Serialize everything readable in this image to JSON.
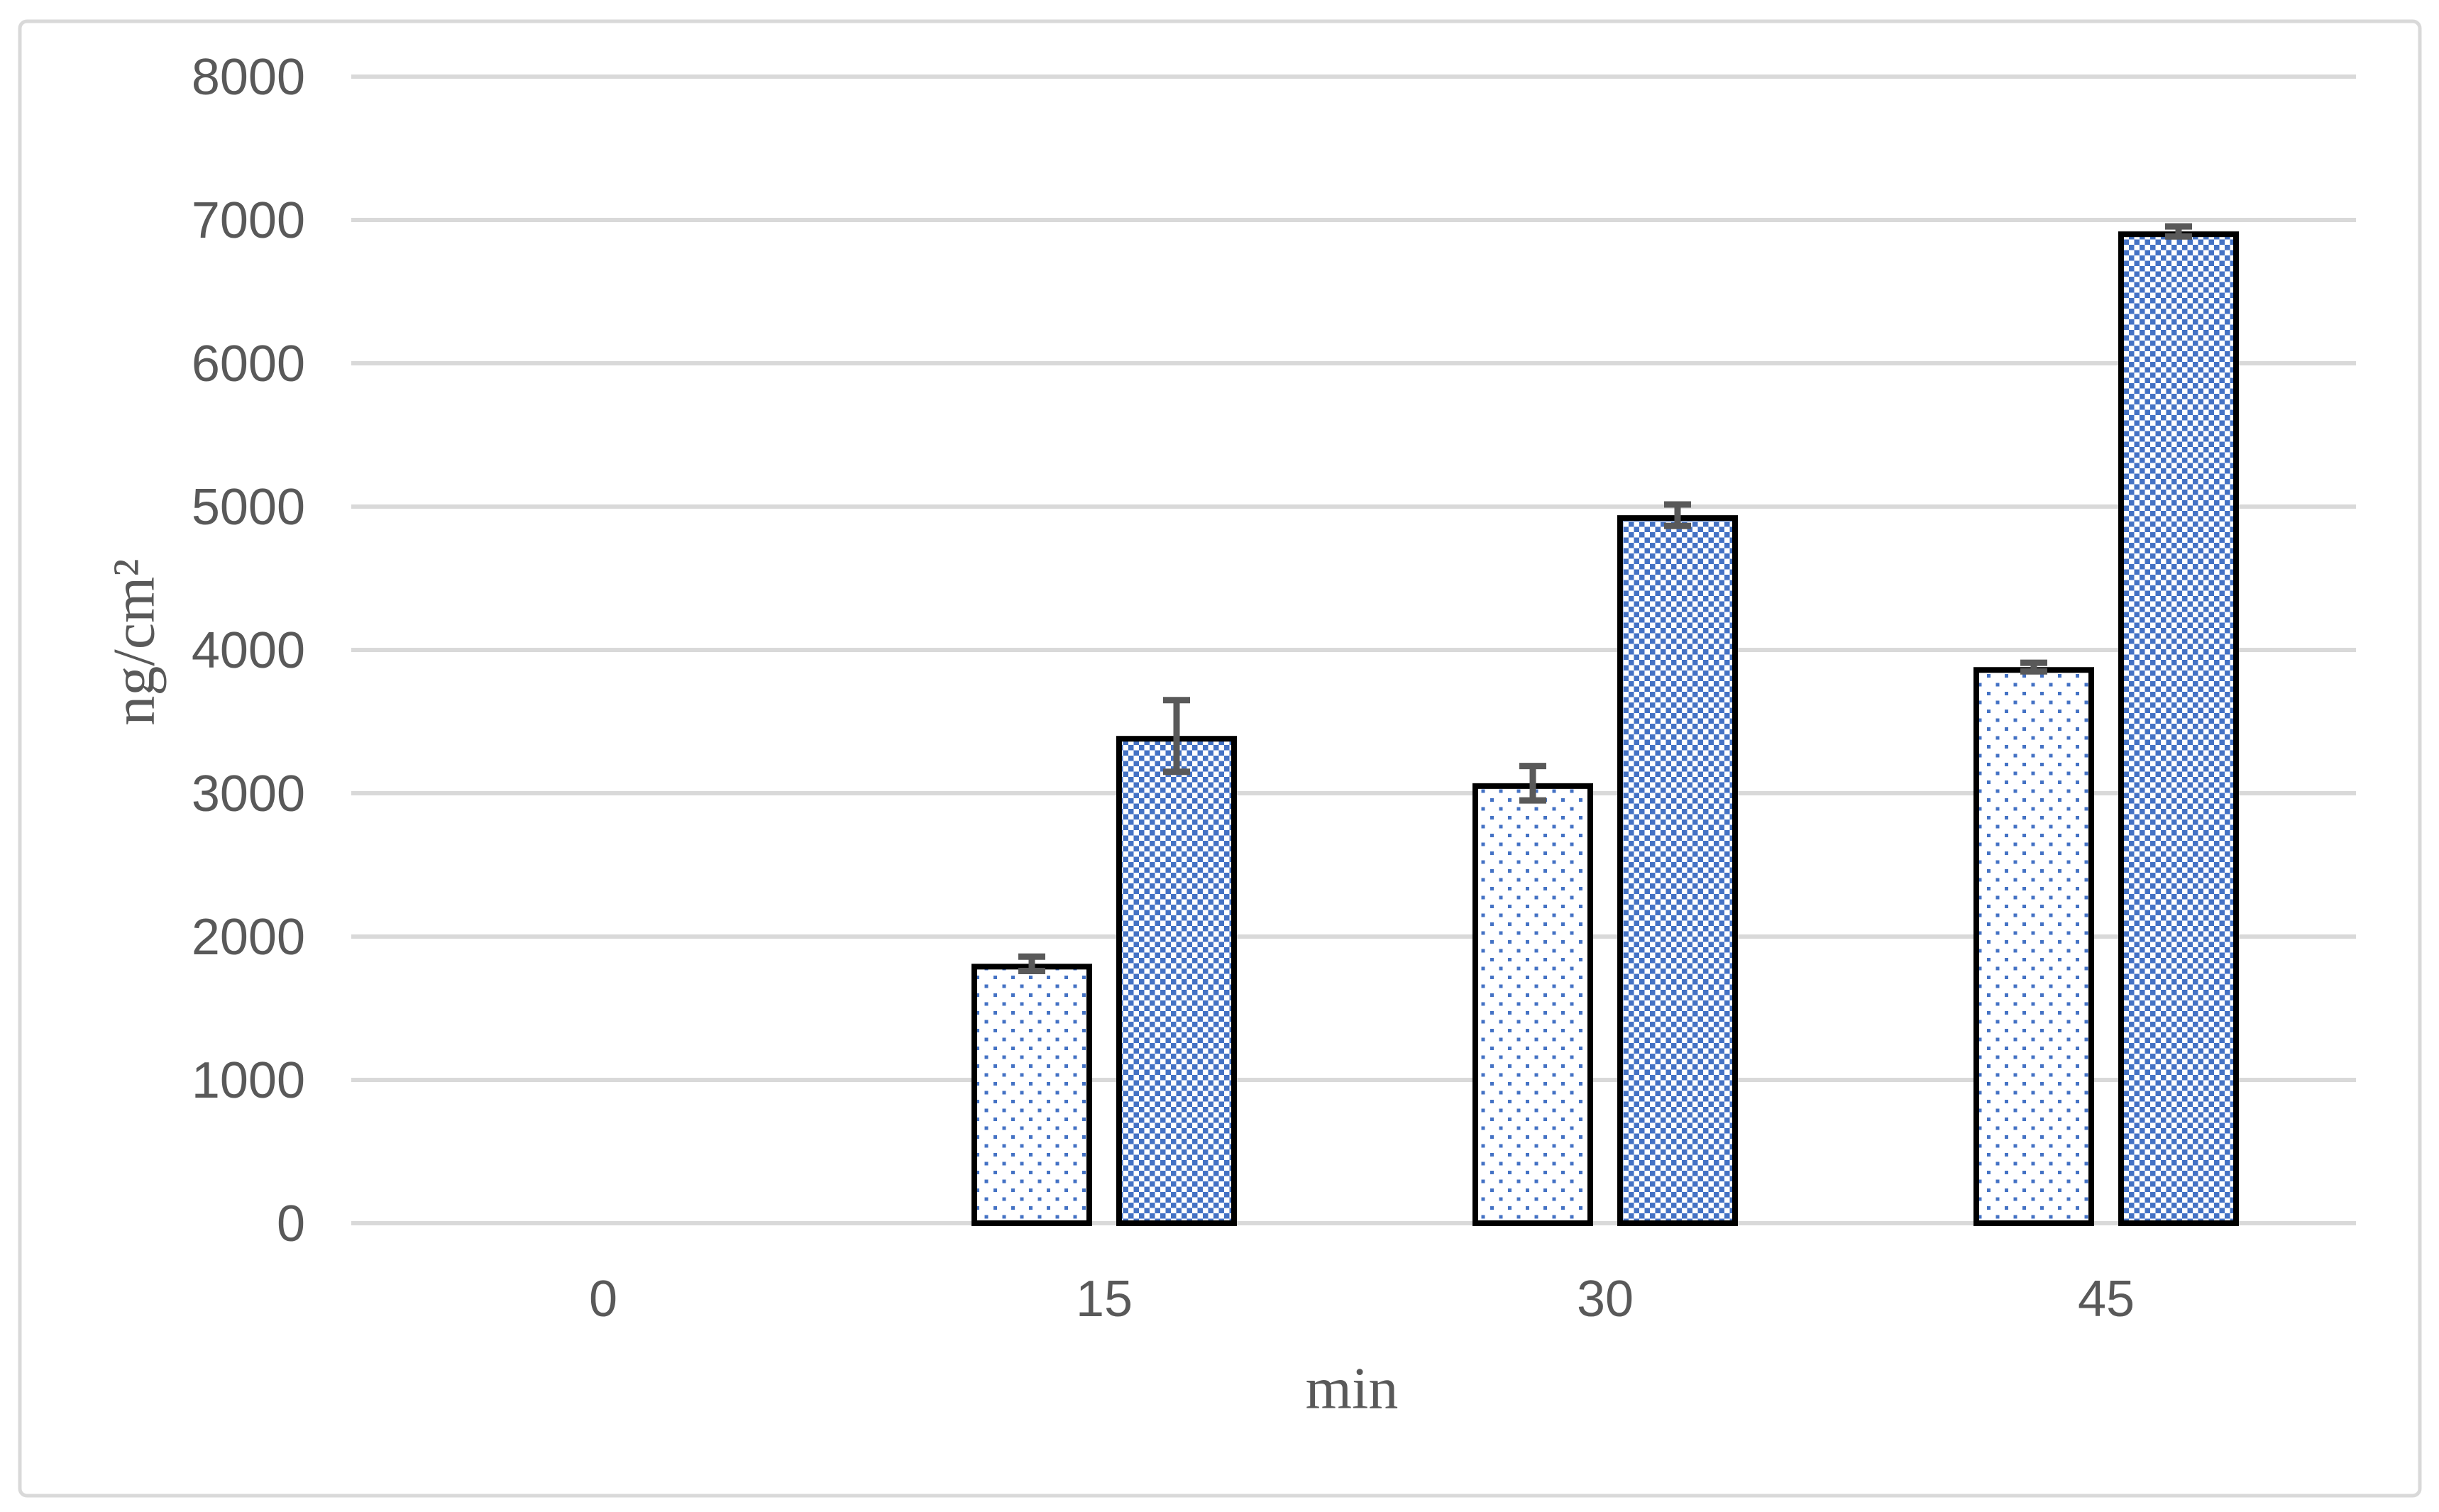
{
  "window": {
    "background": "#FFFFFF"
  },
  "chart_data": {
    "type": "bar",
    "title": "",
    "categories": [
      "0",
      "15",
      "30",
      "45"
    ],
    "xlabel": "min",
    "ylabel": "ng/cm²",
    "ylim": [
      0,
      8000
    ],
    "ytick_step": 1000,
    "yticks": [
      0,
      1000,
      2000,
      3000,
      4000,
      5000,
      6000,
      7000,
      8000
    ],
    "grid": true,
    "legend": "none",
    "series": [
      {
        "name": "dotted-pattern-series",
        "pattern": "dots",
        "values": [
          0,
          1810,
          3070,
          3880
        ],
        "errors": [
          0,
          50,
          120,
          30
        ]
      },
      {
        "name": "checkerboard-pattern-series",
        "pattern": "checker",
        "values": [
          0,
          3400,
          4940,
          6920
        ],
        "errors": [
          0,
          250,
          75,
          35
        ]
      }
    ],
    "colors": {
      "pattern_blue": "#4472C4",
      "bar_border": "#000000",
      "error_bar": "#595959",
      "gridline": "#D9D9D9",
      "frame_border": "#D9D9D9",
      "text": "#595959",
      "background": "#FFFFFF"
    }
  }
}
